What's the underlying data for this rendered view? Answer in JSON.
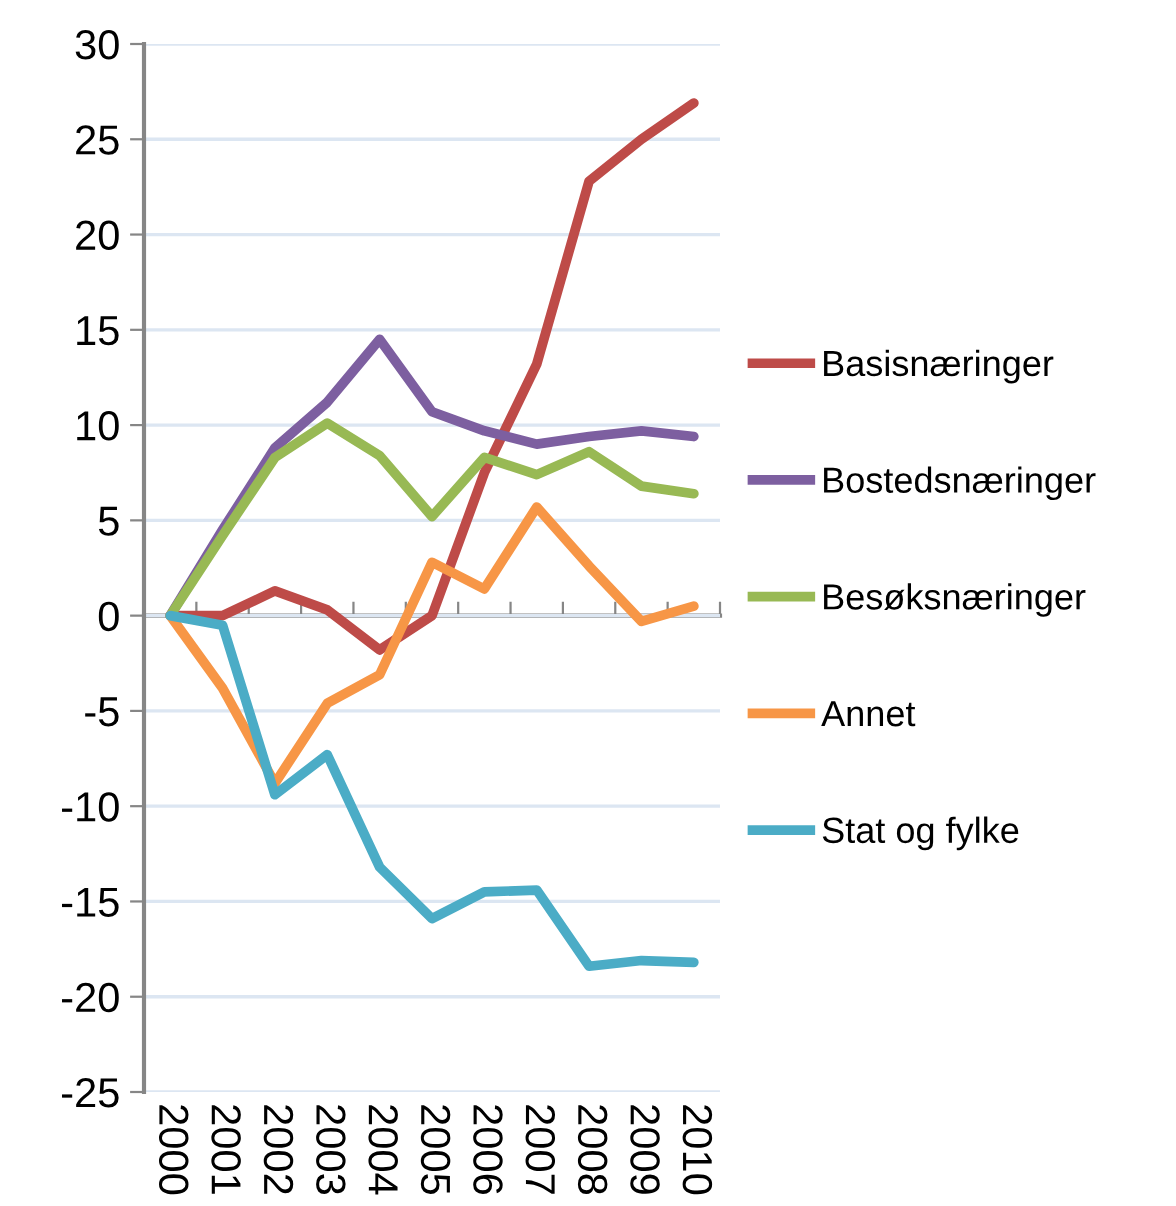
{
  "chart_data": {
    "type": "line",
    "categories": [
      "2000",
      "2001",
      "2002",
      "2003",
      "2004",
      "2005",
      "2006",
      "2007",
      "2008",
      "2009",
      "2010"
    ],
    "series": [
      {
        "name": "Basisnæringer",
        "color": "#be4b48",
        "values": [
          0,
          0,
          1.3,
          0.3,
          -1.8,
          0,
          7.5,
          13.2,
          22.8,
          25,
          26.9
        ]
      },
      {
        "name": "Bostedsnæringer",
        "color": "#7d5fa0",
        "values": [
          0,
          4.5,
          8.8,
          11.2,
          14.5,
          10.7,
          9.7,
          9.0,
          9.4,
          9.7,
          9.4
        ]
      },
      {
        "name": "Besøksnæringer",
        "color": "#98b954",
        "values": [
          0,
          4.2,
          8.3,
          10.1,
          8.4,
          5.2,
          8.3,
          7.4,
          8.6,
          6.8,
          6.4
        ]
      },
      {
        "name": "Annet",
        "color": "#f79646",
        "values": [
          0,
          -3.8,
          -8.8,
          -4.6,
          -3.1,
          2.8,
          1.4,
          5.7,
          2.6,
          -0.3,
          0.5
        ]
      },
      {
        "name": "Stat og fylke",
        "color": "#4bacc6",
        "values": [
          0,
          -0.5,
          -9.4,
          -7.3,
          -13.2,
          -15.9,
          -14.5,
          -14.4,
          -18.4,
          -18.1,
          -18.2
        ]
      }
    ],
    "ylim": [
      -25,
      30
    ],
    "yticks": [
      -25,
      -20,
      -15,
      -10,
      -5,
      0,
      5,
      10,
      15,
      20,
      25,
      30
    ],
    "grid": "y",
    "legend": "right",
    "marker": "none",
    "line_style": "solid"
  }
}
